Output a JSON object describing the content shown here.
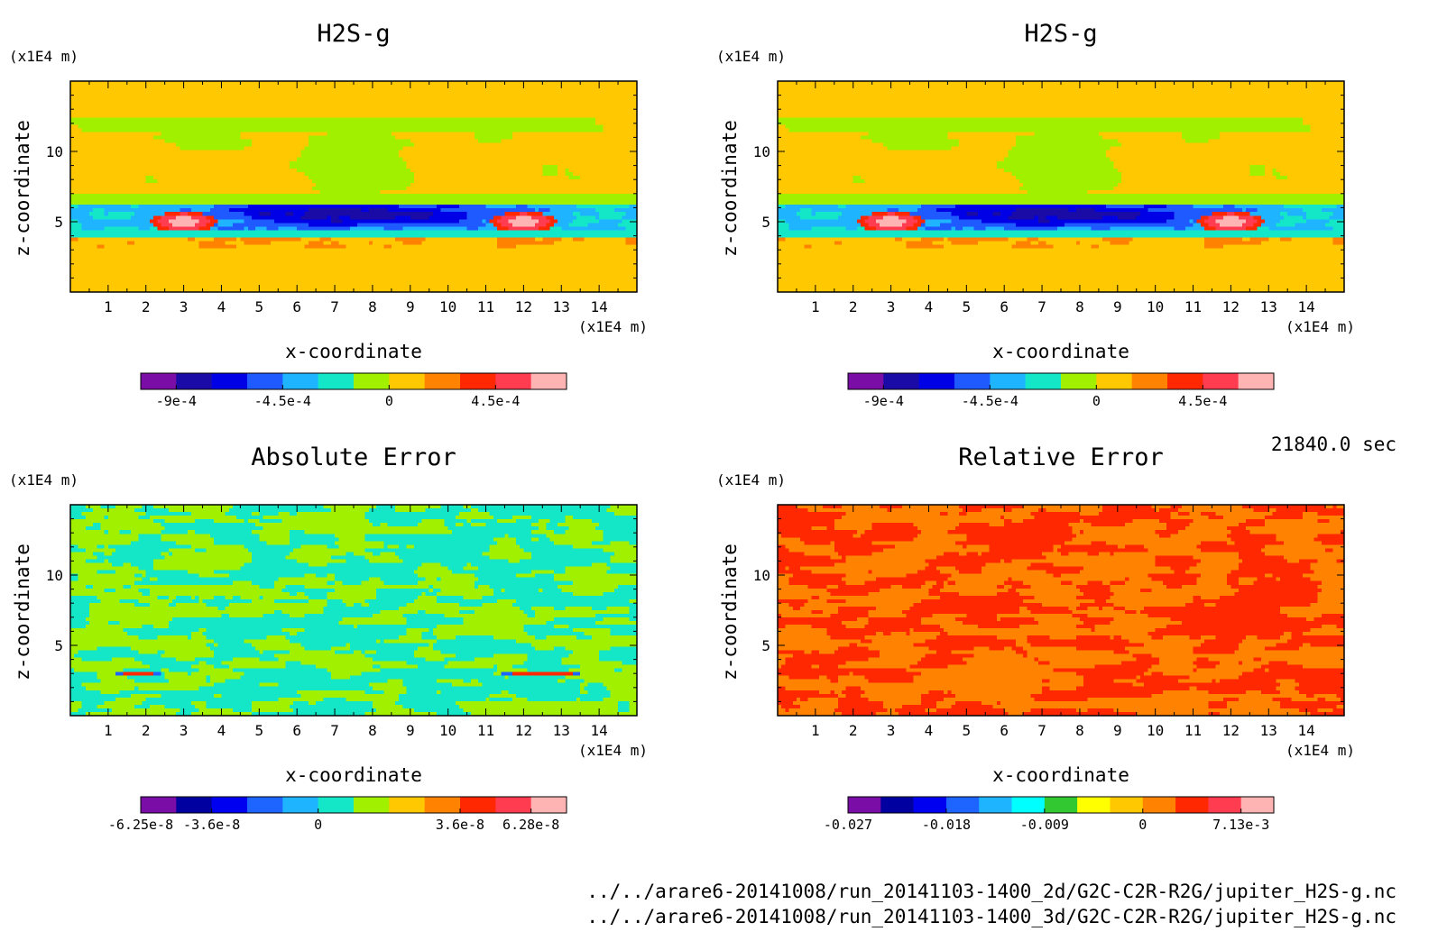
{
  "time_label": "21840.0 sec",
  "file_paths": [
    "../../arare6-20141008/run_20141103-1400_2d/G2C-C2R-R2G/jupiter_H2S-g.nc",
    "../../arare6-20141008/run_20141103-1400_3d/G2C-C2R-R2G/jupiter_H2S-g.nc"
  ],
  "chart_data": [
    {
      "type": "heatmap",
      "title": "H2S-g",
      "xlabel": "x-coordinate",
      "ylabel": "z-coordinate",
      "x_unit": "(x1E4 m)",
      "y_unit": "(x1E4 m)",
      "xlim": [
        0,
        15
      ],
      "ylim": [
        0,
        15
      ],
      "x_ticks": [
        1,
        2,
        3,
        4,
        5,
        6,
        7,
        8,
        9,
        10,
        11,
        12,
        13,
        14
      ],
      "y_ticks": [
        5,
        10
      ],
      "colorbar": {
        "colors": [
          "#7a0da6",
          "#1a0aa6",
          "#0000e6",
          "#1e5aff",
          "#1eb4ff",
          "#14e6c8",
          "#a0f000",
          "#ffc800",
          "#ff8200",
          "#ff2800",
          "#ff3c50",
          "#ffb4b4"
        ],
        "tick_labels": [
          "-9e-4",
          "-4.5e-4",
          "0",
          "4.5e-4"
        ],
        "tick_levels": [
          1,
          4,
          7,
          10
        ]
      },
      "field": "h2s"
    },
    {
      "type": "heatmap",
      "title": "H2S-g",
      "xlabel": "x-coordinate",
      "ylabel": "z-coordinate",
      "x_unit": "(x1E4 m)",
      "y_unit": "(x1E4 m)",
      "xlim": [
        0,
        15
      ],
      "ylim": [
        0,
        15
      ],
      "x_ticks": [
        1,
        2,
        3,
        4,
        5,
        6,
        7,
        8,
        9,
        10,
        11,
        12,
        13,
        14
      ],
      "y_ticks": [
        5,
        10
      ],
      "colorbar": {
        "colors": [
          "#7a0da6",
          "#1a0aa6",
          "#0000e6",
          "#1e5aff",
          "#1eb4ff",
          "#14e6c8",
          "#a0f000",
          "#ffc800",
          "#ff8200",
          "#ff2800",
          "#ff3c50",
          "#ffb4b4"
        ],
        "tick_labels": [
          "-9e-4",
          "-4.5e-4",
          "0",
          "4.5e-4"
        ],
        "tick_levels": [
          1,
          4,
          7,
          10
        ]
      },
      "field": "h2s"
    },
    {
      "type": "heatmap",
      "title": "Absolute Error",
      "xlabel": "x-coordinate",
      "ylabel": "z-coordinate",
      "x_unit": "(x1E4 m)",
      "y_unit": "(x1E4 m)",
      "xlim": [
        0,
        15
      ],
      "ylim": [
        0,
        15
      ],
      "x_ticks": [
        1,
        2,
        3,
        4,
        5,
        6,
        7,
        8,
        9,
        10,
        11,
        12,
        13,
        14
      ],
      "y_ticks": [
        5,
        10
      ],
      "colorbar": {
        "colors": [
          "#7a0da6",
          "#0000a0",
          "#0000f0",
          "#1e64ff",
          "#1eb4ff",
          "#14e6c8",
          "#a0f000",
          "#ffc800",
          "#ff8200",
          "#ff2800",
          "#ff3c50",
          "#ffb4b4"
        ],
        "tick_labels": [
          "-6.25e-8",
          "-3.6e-8",
          "0",
          "3.6e-8",
          "6.28e-8"
        ],
        "tick_levels": [
          0,
          2,
          5,
          9,
          11
        ]
      },
      "field": "abs"
    },
    {
      "type": "heatmap",
      "title": "Relative Error",
      "xlabel": "x-coordinate",
      "ylabel": "z-coordinate",
      "x_unit": "(x1E4 m)",
      "y_unit": "(x1E4 m)",
      "xlim": [
        0,
        15
      ],
      "ylim": [
        0,
        15
      ],
      "x_ticks": [
        1,
        2,
        3,
        4,
        5,
        6,
        7,
        8,
        9,
        10,
        11,
        12,
        13,
        14
      ],
      "y_ticks": [
        5,
        10
      ],
      "colorbar": {
        "colors": [
          "#7a0da6",
          "#0000a0",
          "#0000f0",
          "#1e64ff",
          "#1eb4ff",
          "#00ffff",
          "#32c832",
          "#ffff00",
          "#ffc800",
          "#ff8200",
          "#ff2800",
          "#ff3c50",
          "#ffb4b4"
        ],
        "tick_labels": [
          "-0.027",
          "-0.018",
          "-0.009",
          "0",
          "7.13e-3"
        ],
        "tick_levels": [
          0,
          3,
          6,
          9,
          12
        ]
      },
      "field": "rel"
    }
  ]
}
